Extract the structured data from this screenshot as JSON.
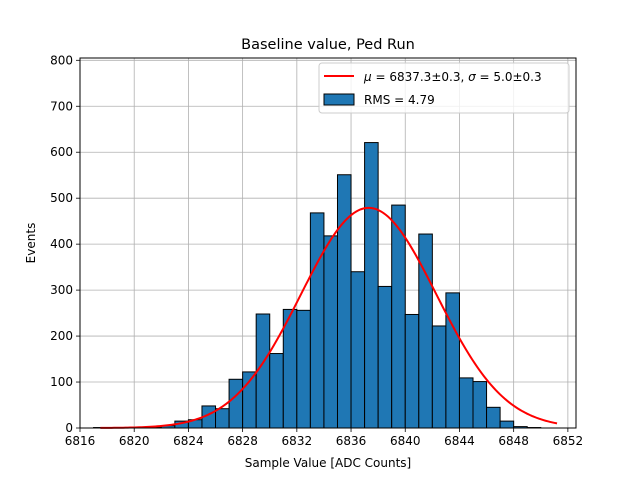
{
  "chart_data": {
    "type": "bar",
    "title": "Baseline value, Ped Run",
    "xlabel": "Sample Value [ADC Counts]",
    "ylabel": "Events",
    "xlim": [
      6816,
      6852.6
    ],
    "ylim": [
      0,
      805
    ],
    "xticks": [
      6816,
      6820,
      6824,
      6828,
      6832,
      6836,
      6840,
      6844,
      6848,
      6852
    ],
    "yticks": [
      0,
      100,
      200,
      300,
      400,
      500,
      600,
      700,
      800
    ],
    "grid": true,
    "legend_position": "top-right",
    "bin_width": 1,
    "bins": [
      {
        "x": 6817.5,
        "value": 1
      },
      {
        "x": 6818.5,
        "value": 0
      },
      {
        "x": 6819.5,
        "value": 1
      },
      {
        "x": 6820.5,
        "value": 1
      },
      {
        "x": 6821.5,
        "value": 2
      },
      {
        "x": 6822.5,
        "value": 5
      },
      {
        "x": 6823.5,
        "value": 15
      },
      {
        "x": 6824.5,
        "value": 18
      },
      {
        "x": 6825.5,
        "value": 48
      },
      {
        "x": 6826.5,
        "value": 42
      },
      {
        "x": 6827.5,
        "value": 106
      },
      {
        "x": 6828.5,
        "value": 122
      },
      {
        "x": 6829.5,
        "value": 248
      },
      {
        "x": 6830.5,
        "value": 162
      },
      {
        "x": 6831.5,
        "value": 258
      },
      {
        "x": 6832.5,
        "value": 256
      },
      {
        "x": 6833.5,
        "value": 468
      },
      {
        "x": 6834.5,
        "value": 418
      },
      {
        "x": 6835.5,
        "value": 551
      },
      {
        "x": 6836.5,
        "value": 340
      },
      {
        "x": 6837.5,
        "value": 621
      },
      {
        "x": 6838.5,
        "value": 308
      },
      {
        "x": 6839.5,
        "value": 485
      },
      {
        "x": 6840.5,
        "value": 247
      },
      {
        "x": 6841.5,
        "value": 422
      },
      {
        "x": 6842.5,
        "value": 222
      },
      {
        "x": 6843.5,
        "value": 294
      },
      {
        "x": 6844.5,
        "value": 109
      },
      {
        "x": 6845.5,
        "value": 101
      },
      {
        "x": 6846.5,
        "value": 45
      },
      {
        "x": 6847.5,
        "value": 15
      },
      {
        "x": 6848.5,
        "value": 3
      },
      {
        "x": 6849.5,
        "value": 1
      }
    ],
    "fit": {
      "mu": 6837.3,
      "sigma": 5.0,
      "amplitude": 479,
      "x_range": [
        6817.5,
        6851.2
      ]
    },
    "series": [
      {
        "name": "$\\mu = 6837.3 \\pm 0.3$, $\\sigma = 5.0 \\pm 0.3$",
        "type": "line",
        "color": "#ff0000"
      },
      {
        "name": "RMS = 4.79",
        "type": "bar",
        "color": "#1f77b4"
      }
    ]
  },
  "legend": {
    "fit_label_mu": "μ",
    "fit_label_mu_value": " = 6837.3±0.3, ",
    "fit_label_sigma": "σ",
    "fit_label_sigma_value": " = 5.0±0.3",
    "hist_label": "RMS = 4.79"
  },
  "colors": {
    "bar_fill": "#1f77b4",
    "bar_edge": "#000000",
    "fit_line": "#ff0000",
    "grid": "#b0b0b0"
  }
}
